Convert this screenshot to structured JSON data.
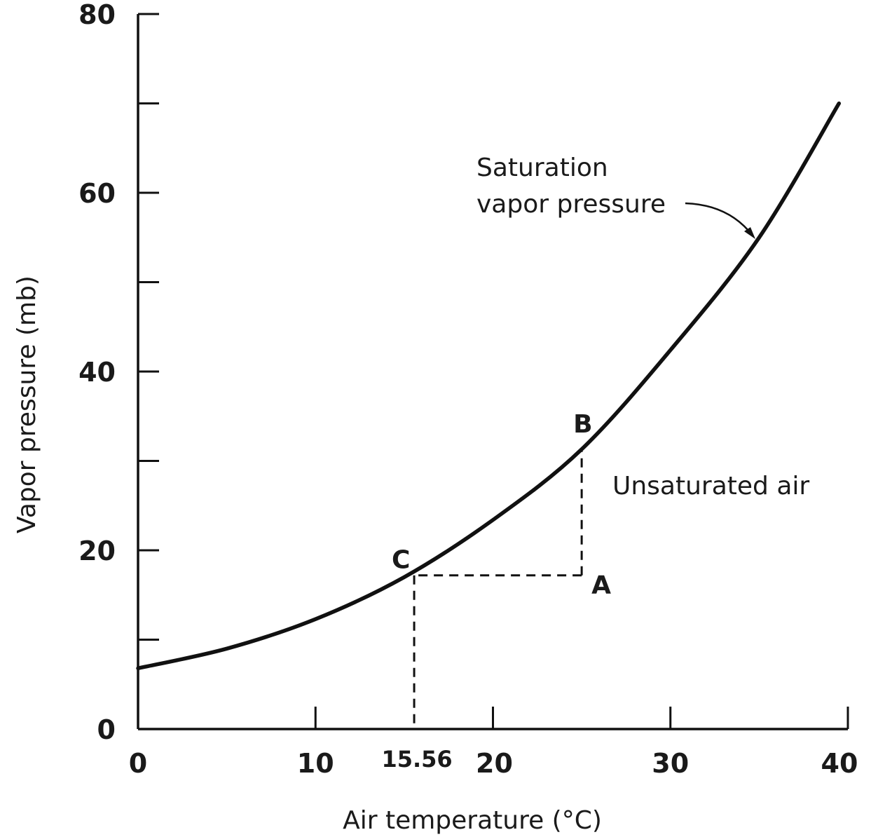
{
  "chart_data": {
    "type": "line",
    "title": "",
    "xlabel": "Air temperature (°C)",
    "ylabel": "Vapor pressure (mb)",
    "xlim": [
      0,
      40
    ],
    "ylim": [
      0,
      80
    ],
    "x_major_ticks": [
      0,
      10,
      20,
      30,
      40
    ],
    "x_tick_labels": [
      "0",
      "10",
      "20",
      "30",
      "40"
    ],
    "y_ticks": [
      0,
      10,
      20,
      30,
      40,
      50,
      60,
      70,
      80
    ],
    "y_tick_labels": [
      "0",
      "20",
      "40",
      "60",
      "80"
    ],
    "y_labeled_values": [
      0,
      20,
      40,
      60,
      80
    ],
    "extra_x_label": "15.56",
    "extra_x_value": 15.56,
    "series": [
      {
        "x": [
          0,
          5,
          10,
          15,
          20,
          25,
          30,
          35,
          39.5
        ],
        "values": [
          6.8,
          9.0,
          12.3,
          17.0,
          23.4,
          31.3,
          42.4,
          55.0,
          70.0
        ]
      }
    ],
    "points": [
      {
        "label": "A",
        "x": 25,
        "y": 17.2
      },
      {
        "label": "B",
        "x": 25,
        "y": 31.3
      },
      {
        "label": "C",
        "x": 15.56,
        "y": 17.2
      }
    ],
    "annotations": {
      "curve_label_line1": "Saturation",
      "curve_label_line2": "vapor pressure",
      "region_label": "Unsaturated air"
    },
    "grid": false,
    "legend": "none"
  }
}
